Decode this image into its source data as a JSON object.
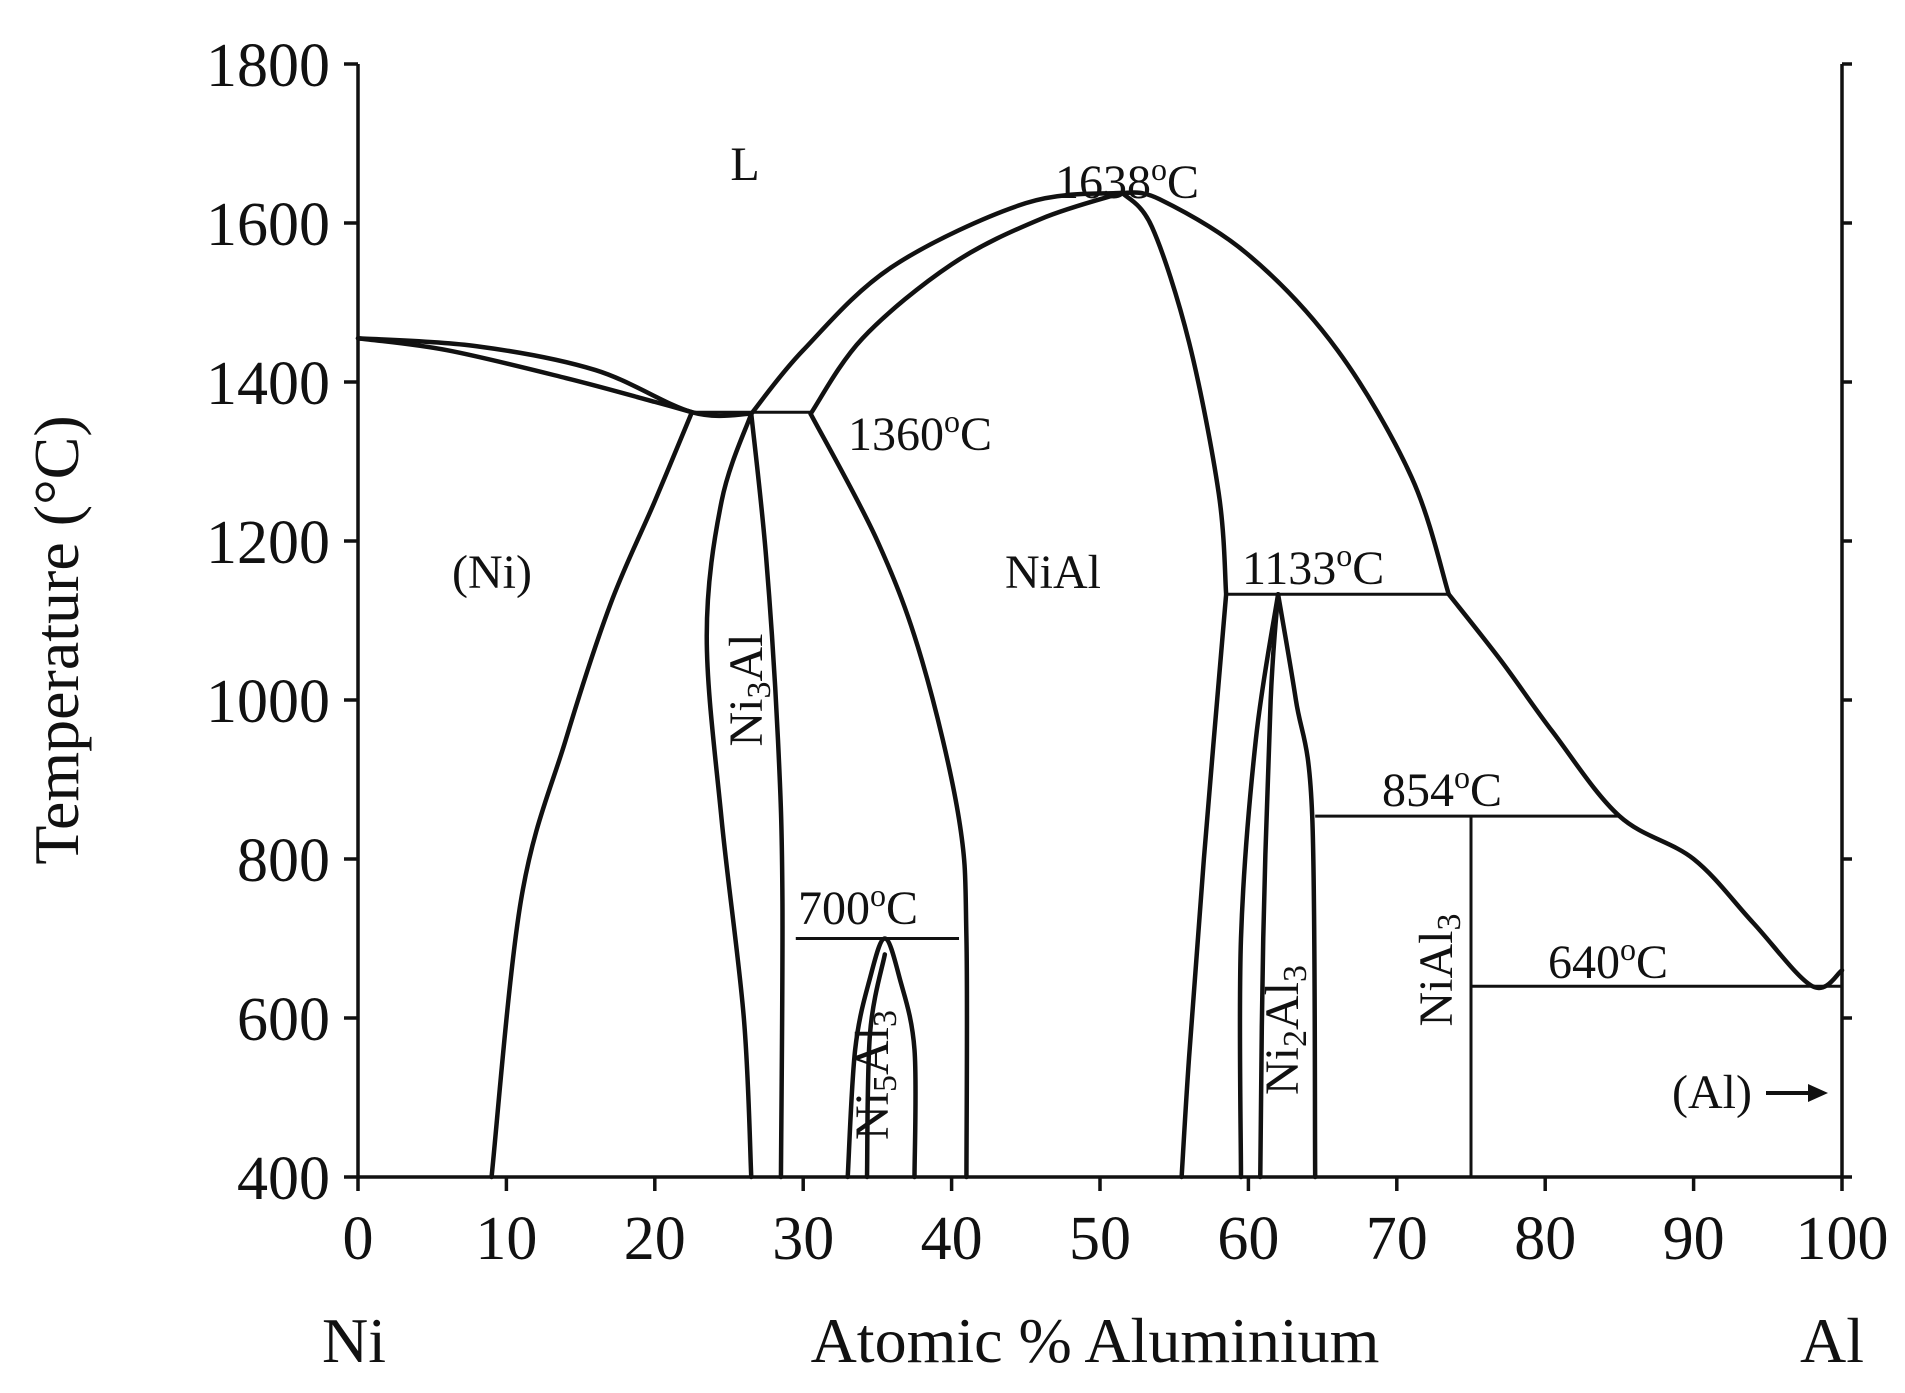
{
  "chart_data": {
    "type": "phase-diagram",
    "xlabel": "Atomic % Aluminium",
    "ylabel": "Temperature (°C)",
    "xlim": [
      0,
      100
    ],
    "ylim": [
      400,
      1800
    ],
    "x_ticks": [
      "0",
      "10",
      "20",
      "30",
      "40",
      "50",
      "60",
      "70",
      "80",
      "90",
      "100"
    ],
    "y_ticks": [
      "400",
      "600",
      "800",
      "1000",
      "1200",
      "1400",
      "1600",
      "1800"
    ],
    "x_end_labels": {
      "left": "Ni",
      "right": "Al"
    },
    "annotations": [
      {
        "id": "t1638",
        "text": "1638°C",
        "x": 51.5,
        "y": 1638
      },
      {
        "id": "t1360",
        "text": "1360°C",
        "x": 30.5,
        "y": 1360
      },
      {
        "id": "t1133",
        "text": "1133°C",
        "x": 61.5,
        "y": 1133
      },
      {
        "id": "t854",
        "text": "854°C",
        "x": 64.5,
        "y": 854
      },
      {
        "id": "t700",
        "text": "700°C",
        "x": 29.5,
        "y": 700
      },
      {
        "id": "t640",
        "text": "640°C",
        "x": 76,
        "y": 640
      }
    ],
    "region_labels": [
      {
        "id": "liquid",
        "text": "L"
      },
      {
        "id": "ni",
        "text": "(Ni)"
      },
      {
        "id": "nial",
        "text": "NiAl"
      },
      {
        "id": "ni3al",
        "text": "Ni3Al"
      },
      {
        "id": "ni5al3",
        "text": "Ni5Al3"
      },
      {
        "id": "ni2al3",
        "text": "Ni2Al3"
      },
      {
        "id": "nial3",
        "text": "NiAl3"
      },
      {
        "id": "al",
        "text": "(Al)"
      }
    ],
    "lines": [
      {
        "name": "liquidus-ni",
        "points": [
          [
            0,
            1455
          ],
          [
            8,
            1445
          ],
          [
            16,
            1415
          ],
          [
            22.5,
            1362
          ],
          [
            26.5,
            1360
          ]
        ]
      },
      {
        "name": "solidus-ni",
        "points": [
          [
            0,
            1455
          ],
          [
            6,
            1440
          ],
          [
            14,
            1405
          ],
          [
            20,
            1375
          ],
          [
            22.5,
            1362
          ]
        ]
      },
      {
        "name": "ni-solvus",
        "points": [
          [
            22.5,
            1362
          ],
          [
            20,
            1250
          ],
          [
            17,
            1120
          ],
          [
            14,
            950
          ],
          [
            11,
            750
          ],
          [
            9,
            400
          ]
        ]
      },
      {
        "name": "ni3al-left",
        "points": [
          [
            26.5,
            1360
          ],
          [
            24.5,
            1250
          ],
          [
            23.5,
            1080
          ],
          [
            24.5,
            850
          ],
          [
            26,
            600
          ],
          [
            26.5,
            400
          ]
        ]
      },
      {
        "name": "ni3al-right",
        "points": [
          [
            26.5,
            1360
          ],
          [
            27.5,
            1180
          ],
          [
            28.3,
            950
          ],
          [
            28.6,
            750
          ],
          [
            28.5,
            400
          ]
        ]
      },
      {
        "name": "liquidus-nial-left",
        "points": [
          [
            26.5,
            1360
          ],
          [
            30,
            1440
          ],
          [
            36,
            1545
          ],
          [
            45,
            1625
          ],
          [
            51.5,
            1638
          ]
        ]
      },
      {
        "name": "solidus-nial-left",
        "points": [
          [
            30.5,
            1360
          ],
          [
            34,
            1455
          ],
          [
            40,
            1548
          ],
          [
            46,
            1605
          ],
          [
            51.5,
            1638
          ]
        ]
      },
      {
        "name": "nial-left-solvus",
        "points": [
          [
            30.5,
            1360
          ],
          [
            35,
            1200
          ],
          [
            38,
            1050
          ],
          [
            40.5,
            850
          ],
          [
            41,
            700
          ],
          [
            41,
            400
          ]
        ]
      },
      {
        "name": "liquidus-nial-right",
        "points": [
          [
            51.5,
            1638
          ],
          [
            54,
            1630
          ],
          [
            60,
            1560
          ],
          [
            66,
            1440
          ],
          [
            71,
            1280
          ],
          [
            73.5,
            1133
          ]
        ]
      },
      {
        "name": "solidus-nial-right",
        "points": [
          [
            51.5,
            1638
          ],
          [
            53.5,
            1595
          ],
          [
            56,
            1450
          ],
          [
            58,
            1260
          ],
          [
            58.5,
            1133
          ]
        ]
      },
      {
        "name": "nial-right-solvus",
        "points": [
          [
            58.5,
            1133
          ],
          [
            57,
            800
          ],
          [
            56,
            550
          ],
          [
            55.5,
            400
          ]
        ]
      },
      {
        "name": "ni2al3-left",
        "points": [
          [
            62,
            1133
          ],
          [
            60.5,
            950
          ],
          [
            59.5,
            700
          ],
          [
            59.5,
            400
          ]
        ]
      },
      {
        "name": "ni2al3-inner",
        "points": [
          [
            62,
            1133
          ],
          [
            61.5,
            1000
          ],
          [
            61,
            700
          ],
          [
            60.8,
            400
          ]
        ]
      },
      {
        "name": "ni2al3-right",
        "points": [
          [
            62,
            1133
          ],
          [
            63.2,
            1000
          ],
          [
            64.3,
            854
          ],
          [
            64.5,
            400
          ]
        ]
      },
      {
        "name": "ni5al3-dome",
        "points": [
          [
            33,
            400
          ],
          [
            33.5,
            560
          ],
          [
            34.5,
            650
          ],
          [
            35.5,
            700
          ],
          [
            36.5,
            650
          ],
          [
            37.5,
            560
          ],
          [
            37.5,
            400
          ]
        ]
      },
      {
        "name": "ni5al3-inner",
        "points": [
          [
            34.3,
            400
          ],
          [
            34.5,
            580
          ],
          [
            35.5,
            680
          ]
        ]
      },
      {
        "name": "liquidus-al",
        "points": [
          [
            73.5,
            1133
          ],
          [
            77,
            1050
          ],
          [
            80.5,
            960
          ],
          [
            85,
            854
          ],
          [
            90,
            800
          ],
          [
            94,
            720
          ],
          [
            98,
            640
          ],
          [
            100,
            660
          ]
        ]
      },
      {
        "name": "eutectic-1360",
        "points": [
          [
            22.5,
            1362
          ],
          [
            30.5,
            1362
          ]
        ]
      },
      {
        "name": "peritectic-1133",
        "points": [
          [
            58.5,
            1133
          ],
          [
            73.5,
            1133
          ]
        ]
      },
      {
        "name": "peritectic-854",
        "points": [
          [
            64.5,
            854
          ],
          [
            85,
            854
          ]
        ]
      },
      {
        "name": "eutectoid-700",
        "points": [
          [
            29.5,
            700
          ],
          [
            40.5,
            700
          ]
        ]
      },
      {
        "name": "eutectic-640",
        "points": [
          [
            75,
            640
          ],
          [
            100,
            640
          ]
        ]
      },
      {
        "name": "nial3-line",
        "points": [
          [
            75,
            854
          ],
          [
            75,
            400
          ]
        ]
      }
    ]
  }
}
